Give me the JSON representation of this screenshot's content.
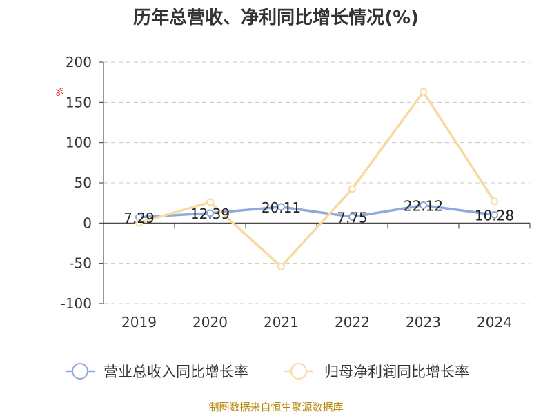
{
  "chart_data": {
    "type": "line",
    "title": "历年总营收、净利同比增长情况(%)",
    "unit": "%",
    "categories": [
      "2019",
      "2020",
      "2021",
      "2022",
      "2023",
      "2024"
    ],
    "ylim": [
      -100,
      200
    ],
    "yticks": [
      200,
      150,
      100,
      50,
      0,
      -50,
      -100
    ],
    "grid": true,
    "legend_position": "bottom",
    "series": [
      {
        "name": "营业总收入同比增长率",
        "color": "#8eaad8",
        "values": [
          7.29,
          12.39,
          20.11,
          7.75,
          22.12,
          10.28
        ],
        "labels": [
          "7.29",
          "12.39",
          "20.11",
          "7.75",
          "22.12",
          "10.28"
        ]
      },
      {
        "name": "归母净利润同比增长率",
        "color": "#f8d9a0",
        "values": [
          0.4,
          26.0,
          -54.0,
          42.5,
          163.0,
          27.0
        ]
      }
    ]
  },
  "source": "制图数据来自恒生聚源数据库"
}
